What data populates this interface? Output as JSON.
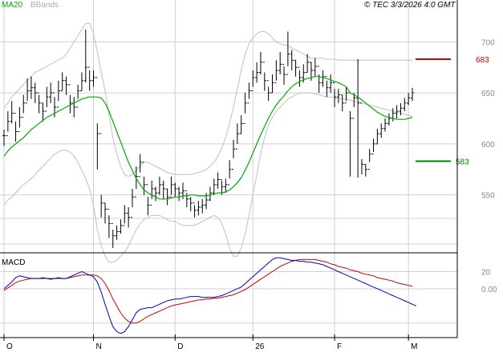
{
  "header": {
    "legend_ma": "MA20",
    "legend_bb": "BBands",
    "copyright": "© TEC 3/3/2026 4:0 GMT"
  },
  "colors": {
    "ma": "#00aa00",
    "bbands": "#c0c0c0",
    "price": "#000000",
    "macd_line": "#0000cc",
    "signal_line": "#cc0000",
    "resistance": "#cc0000",
    "support": "#008800",
    "grid": "#d0d0d0",
    "legend_ma_text": "#00aa00",
    "legend_bb_text": "#aaaaaa"
  },
  "price_panel": {
    "y_ticks": [
      {
        "value": 700,
        "label": "700"
      },
      {
        "value": 650,
        "label": "650"
      },
      {
        "value": 600,
        "label": "600"
      },
      {
        "value": 550,
        "label": "550"
      }
    ],
    "resistance": {
      "value": 683,
      "label": "683"
    },
    "support": {
      "value": 583,
      "label": "583"
    }
  },
  "macd_panel": {
    "title": "MACD",
    "y_ticks": [
      {
        "value": 20,
        "label": "20"
      },
      {
        "value": 0,
        "label": "0.00"
      }
    ]
  },
  "x_axis": {
    "labels": [
      {
        "label": "O",
        "index": 0
      },
      {
        "label": "N",
        "index": 23
      },
      {
        "label": "D",
        "index": 44
      },
      {
        "label": "26",
        "index": 64
      },
      {
        "label": "F",
        "index": 85
      },
      {
        "label": "M",
        "index": 104
      }
    ]
  },
  "chart_data": {
    "type": "line",
    "subtype": "ohlc-bars with MA20, Bollinger Bands and MACD",
    "ylim": [
      498,
      730
    ],
    "macd_ylim": [
      -55,
      40
    ],
    "close": [
      608,
      622,
      630,
      612,
      626,
      640,
      652,
      655,
      650,
      640,
      632,
      646,
      650,
      636,
      652,
      662,
      658,
      640,
      636,
      652,
      662,
      675,
      662,
      665,
      610,
      542,
      536,
      522,
      510,
      514,
      520,
      532,
      528,
      548,
      568,
      582,
      560,
      540,
      556,
      552,
      560,
      556,
      548,
      560,
      556,
      552,
      554,
      546,
      542,
      535,
      538,
      540,
      545,
      552,
      560,
      565,
      558,
      560,
      575,
      595,
      610,
      620,
      640,
      652,
      665,
      670,
      680,
      662,
      650,
      660,
      672,
      678,
      668,
      688,
      682,
      675,
      665,
      670,
      680,
      672,
      676,
      660,
      666,
      655,
      660,
      646,
      648,
      640,
      650,
      625,
      645,
      640,
      580,
      575,
      590,
      600,
      610,
      615,
      620,
      625,
      630,
      632,
      635,
      640,
      645,
      650
    ],
    "high": [
      614,
      632,
      642,
      622,
      636,
      648,
      664,
      666,
      660,
      648,
      640,
      656,
      660,
      646,
      662,
      670,
      666,
      648,
      646,
      658,
      670,
      712,
      672,
      672,
      620,
      550,
      542,
      530,
      516,
      520,
      526,
      540,
      538,
      556,
      578,
      590,
      568,
      548,
      564,
      558,
      568,
      564,
      556,
      568,
      562,
      558,
      562,
      552,
      548,
      540,
      544,
      546,
      552,
      558,
      566,
      572,
      564,
      566,
      584,
      604,
      620,
      628,
      650,
      660,
      672,
      680,
      690,
      670,
      656,
      668,
      682,
      690,
      676,
      710,
      692,
      682,
      672,
      678,
      688,
      680,
      684,
      668,
      672,
      662,
      668,
      654,
      654,
      648,
      656,
      632,
      650,
      683,
      585,
      580,
      595,
      605,
      615,
      620,
      625,
      630,
      635,
      638,
      640,
      645,
      650,
      655
    ],
    "low": [
      598,
      612,
      620,
      602,
      616,
      630,
      642,
      644,
      640,
      630,
      622,
      636,
      640,
      626,
      642,
      652,
      648,
      630,
      626,
      644,
      652,
      660,
      652,
      656,
      575,
      528,
      522,
      508,
      498,
      506,
      512,
      522,
      518,
      538,
      556,
      572,
      550,
      530,
      546,
      544,
      550,
      546,
      540,
      550,
      548,
      544,
      546,
      538,
      534,
      528,
      530,
      532,
      536,
      544,
      550,
      556,
      550,
      552,
      566,
      586,
      600,
      610,
      630,
      644,
      656,
      660,
      668,
      652,
      642,
      650,
      662,
      668,
      658,
      676,
      672,
      666,
      656,
      660,
      670,
      662,
      666,
      650,
      656,
      646,
      650,
      636,
      640,
      632,
      642,
      568,
      636,
      567,
      570,
      568,
      582,
      592,
      600,
      606,
      612,
      618,
      622,
      625,
      628,
      632,
      638,
      642
    ],
    "ma20": [
      588,
      593,
      597,
      600,
      603,
      606,
      610,
      614,
      617,
      620,
      623,
      626,
      628,
      630,
      632,
      634,
      636,
      638,
      640,
      642,
      644,
      645,
      646,
      646,
      646,
      645,
      640,
      632,
      622,
      612,
      602,
      592,
      582,
      574,
      566,
      560,
      555,
      552,
      550,
      548,
      546,
      546,
      546,
      547,
      548,
      548,
      549,
      549,
      550,
      550,
      549,
      549,
      549,
      550,
      551,
      552,
      552,
      553,
      555,
      558,
      562,
      567,
      574,
      582,
      591,
      600,
      609,
      617,
      625,
      632,
      638,
      643,
      647,
      652,
      656,
      659,
      661,
      663,
      664,
      665,
      666,
      666,
      665,
      664,
      663,
      661,
      660,
      658,
      656,
      650,
      648,
      646,
      643,
      640,
      637,
      634,
      631,
      629,
      627,
      626,
      625,
      624,
      624,
      624,
      625,
      626
    ],
    "bb_upper": [
      635,
      640,
      646,
      650,
      654,
      658,
      662,
      666,
      670,
      672,
      674,
      676,
      678,
      680,
      682,
      684,
      688,
      694,
      700,
      706,
      712,
      718,
      718,
      708,
      690,
      670,
      652,
      628,
      606,
      590,
      578,
      570,
      568,
      570,
      574,
      578,
      582,
      582,
      580,
      578,
      576,
      574,
      572,
      571,
      570,
      570,
      570,
      570,
      570,
      571,
      572,
      573,
      575,
      578,
      582,
      588,
      596,
      606,
      620,
      636,
      654,
      672,
      688,
      698,
      704,
      708,
      710,
      710,
      708,
      704,
      700,
      698,
      697,
      696,
      694,
      692,
      690,
      688,
      686,
      684,
      684,
      684,
      684,
      683,
      683,
      683,
      682,
      682,
      682,
      682,
      682,
      682,
      682,
      682,
      682,
      682,
      682,
      682,
      682,
      682,
      682,
      682,
      682,
      682,
      682,
      682
    ],
    "bb_lower": [
      540,
      545,
      548,
      552,
      556,
      560,
      563,
      566,
      570,
      574,
      578,
      582,
      586,
      590,
      592,
      594,
      594,
      592,
      588,
      582,
      574,
      566,
      556,
      540,
      516,
      500,
      490,
      484,
      484,
      486,
      490,
      494,
      500,
      508,
      516,
      522,
      526,
      528,
      530,
      530,
      530,
      528,
      526,
      524,
      524,
      522,
      520,
      520,
      520,
      520,
      522,
      524,
      526,
      528,
      530,
      528,
      522,
      512,
      498,
      490,
      490,
      498,
      512,
      530,
      550,
      570,
      590,
      606,
      618,
      626,
      632,
      636,
      640,
      644,
      646,
      648,
      650,
      650,
      650,
      650,
      649,
      648,
      647,
      646,
      646,
      645,
      645,
      644,
      644,
      643,
      642,
      641,
      640,
      639,
      638,
      637,
      636,
      635,
      634,
      633,
      632,
      631,
      630,
      629,
      628,
      627
    ],
    "macd": [
      0,
      4,
      8,
      13,
      15,
      14,
      13,
      12,
      12,
      12,
      13,
      12,
      11,
      12,
      13,
      12,
      12,
      14,
      16,
      18,
      20,
      18,
      16,
      14,
      8,
      -4,
      -18,
      -32,
      -44,
      -50,
      -52,
      -50,
      -44,
      -36,
      -28,
      -24,
      -23,
      -22,
      -22,
      -20,
      -18,
      -16,
      -14,
      -13,
      -12,
      -12,
      -11,
      -10,
      -9,
      -9,
      -9,
      -10,
      -10,
      -10,
      -10,
      -9,
      -8,
      -6,
      -4,
      -2,
      0,
      2,
      6,
      10,
      14,
      18,
      22,
      26,
      30,
      34,
      36,
      36,
      35,
      34,
      33,
      33,
      32,
      32,
      31,
      31,
      30,
      29,
      28,
      26,
      24,
      22,
      20,
      18,
      16,
      14,
      12,
      10,
      8,
      6,
      4,
      2,
      0,
      -2,
      -4,
      -6,
      -8,
      -10,
      -12,
      -14,
      -16,
      -18,
      -20
    ],
    "signal": [
      -2,
      1,
      4,
      7,
      9,
      10,
      11,
      12,
      12,
      12,
      12,
      12,
      12,
      12,
      12,
      12,
      12,
      13,
      14,
      15,
      16,
      16,
      16,
      16,
      15,
      12,
      6,
      -2,
      -12,
      -20,
      -28,
      -34,
      -38,
      -40,
      -40,
      -38,
      -35,
      -32,
      -30,
      -28,
      -26,
      -24,
      -22,
      -20,
      -19,
      -18,
      -17,
      -16,
      -15,
      -14,
      -13,
      -13,
      -12,
      -12,
      -11,
      -11,
      -10,
      -9,
      -8,
      -7,
      -5,
      -3,
      -1,
      2,
      5,
      8,
      11,
      14,
      17,
      20,
      23,
      26,
      28,
      30,
      32,
      33,
      34,
      34,
      34,
      34,
      34,
      33,
      32,
      31,
      29,
      28,
      26,
      25,
      24,
      22,
      21,
      20,
      18,
      17,
      16,
      15,
      13,
      12,
      11,
      10,
      9,
      7,
      6,
      5,
      4,
      3
    ]
  }
}
